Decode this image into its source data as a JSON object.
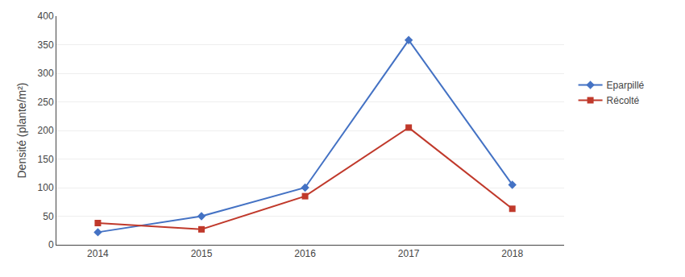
{
  "chart_data": {
    "type": "line",
    "x": [
      2014,
      2015,
      2016,
      2017,
      2018
    ],
    "xlim": [
      2013.6,
      2018.5
    ],
    "xticks": [
      2014,
      2015,
      2016,
      2017,
      2018
    ],
    "ylim": [
      0,
      400
    ],
    "yticks": [
      0,
      50,
      100,
      150,
      200,
      250,
      300,
      350,
      400
    ],
    "ylabel": "Densité (plante/m²)",
    "grid": true,
    "legend": "right",
    "series": [
      {
        "name": "Eparpillé",
        "color": "#4472C4",
        "marker": "diamond",
        "values": [
          22,
          50,
          100,
          358,
          105
        ]
      },
      {
        "name": "Récolté",
        "color": "#C0392B",
        "marker": "square",
        "values": [
          38,
          27,
          85,
          205,
          63
        ]
      }
    ]
  }
}
